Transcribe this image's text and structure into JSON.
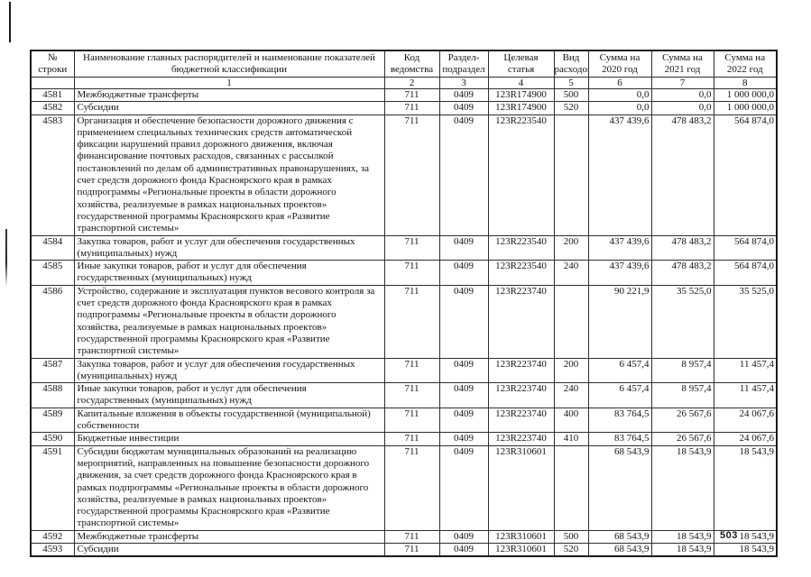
{
  "page": {
    "number": "503"
  },
  "table": {
    "headers": {
      "line": "№ строки",
      "name": "Наименование главных распорядителей и наименование показателей бюджетной классификации",
      "agency": "Код ведомства",
      "section": "Раздел-подраздел",
      "target": "Целевая статья",
      "expense": "Вид расходов",
      "sum2020": "Сумма на 2020 год",
      "sum2021": "Сумма на 2021 год",
      "sum2022": "Сумма на 2022 год"
    },
    "column_numbers": [
      "",
      "1",
      "2",
      "3",
      "4",
      "5",
      "6",
      "7",
      "8"
    ],
    "rows": [
      {
        "line": "4581",
        "name": "Межбюджетные трансферты",
        "agency": "711",
        "section": "0409",
        "target": "123R174900",
        "expense": "500",
        "sum2020": "0,0",
        "sum2021": "0,0",
        "sum2022": "1 000 000,0"
      },
      {
        "line": "4582",
        "name": "Субсидии",
        "agency": "711",
        "section": "0409",
        "target": "123R174900",
        "expense": "520",
        "sum2020": "0,0",
        "sum2021": "0,0",
        "sum2022": "1 000 000,0"
      },
      {
        "line": "4583",
        "name": "Организация и обеспечение безопасности дорожного движения с применением специальных технических средств автоматической фиксации нарушений правил дорожного движения, включая финансирование почтовых расходов, связанных с рассылкой постановлений по делам об административных правонарушениях, за счет средств дорожного фонда Красноярского края в рамках подпрограммы «Региональные проекты в области дорожного хозяйства, реализуемые в рамках национальных проектов» государственной программы Красноярского края «Развитие транспортной системы»",
        "agency": "711",
        "section": "0409",
        "target": "123R223540",
        "expense": "",
        "sum2020": "437 439,6",
        "sum2021": "478 483,2",
        "sum2022": "564 874,0"
      },
      {
        "line": "4584",
        "name": "Закупка товаров, работ и услуг для обеспечения государственных (муниципальных) нужд",
        "agency": "711",
        "section": "0409",
        "target": "123R223540",
        "expense": "200",
        "sum2020": "437 439,6",
        "sum2021": "478 483,2",
        "sum2022": "564 874,0"
      },
      {
        "line": "4585",
        "name": "Иные закупки товаров, работ и услуг для обеспечения государственных (муниципальных) нужд",
        "agency": "711",
        "section": "0409",
        "target": "123R223540",
        "expense": "240",
        "sum2020": "437 439,6",
        "sum2021": "478 483,2",
        "sum2022": "564 874,0"
      },
      {
        "line": "4586",
        "name": "Устройство, содержание и эксплуатация пунктов весового контроля за счет средств дорожного фонда Красноярского края в рамках подпрограммы «Региональные проекты в области дорожного хозяйства, реализуемые в рамках национальных проектов» государственной программы Красноярского края «Развитие транспортной системы»",
        "agency": "711",
        "section": "0409",
        "target": "123R223740",
        "expense": "",
        "sum2020": "90 221,9",
        "sum2021": "35 525,0",
        "sum2022": "35 525,0"
      },
      {
        "line": "4587",
        "name": "Закупка товаров, работ и услуг для обеспечения государственных (муниципальных) нужд",
        "agency": "711",
        "section": "0409",
        "target": "123R223740",
        "expense": "200",
        "sum2020": "6 457,4",
        "sum2021": "8 957,4",
        "sum2022": "11 457,4"
      },
      {
        "line": "4588",
        "name": "Иные закупки товаров, работ и услуг для обеспечения государственных (муниципальных) нужд",
        "agency": "711",
        "section": "0409",
        "target": "123R223740",
        "expense": "240",
        "sum2020": "6 457,4",
        "sum2021": "8 957,4",
        "sum2022": "11 457,4"
      },
      {
        "line": "4589",
        "name": "Капитальные вложения в объекты государственной (муниципальной) собственности",
        "agency": "711",
        "section": "0409",
        "target": "123R223740",
        "expense": "400",
        "sum2020": "83 764,5",
        "sum2021": "26 567,6",
        "sum2022": "24 067,6"
      },
      {
        "line": "4590",
        "name": "Бюджетные инвестиции",
        "agency": "711",
        "section": "0409",
        "target": "123R223740",
        "expense": "410",
        "sum2020": "83 764,5",
        "sum2021": "26 567,6",
        "sum2022": "24 067,6"
      },
      {
        "line": "4591",
        "name": "Субсидии бюджетам муниципальных образований на реализацию мероприятий, направленных на повышение безопасности дорожного движения, за счет средств дорожного фонда Красноярского края в рамках подпрограммы «Региональные проекты в области дорожного хозяйства, реализуемые в рамках национальных проектов» государственной программы Красноярского края «Развитие транспортной системы»",
        "agency": "711",
        "section": "0409",
        "target": "123R310601",
        "expense": "",
        "sum2020": "68 543,9",
        "sum2021": "18 543,9",
        "sum2022": "18 543,9"
      },
      {
        "line": "4592",
        "name": "Межбюджетные трансферты",
        "agency": "711",
        "section": "0409",
        "target": "123R310601",
        "expense": "500",
        "sum2020": "68 543,9",
        "sum2021": "18 543,9",
        "sum2022": "18 543,9"
      },
      {
        "line": "4593",
        "name": "Субсидии",
        "agency": "711",
        "section": "0409",
        "target": "123R310601",
        "expense": "520",
        "sum2020": "68 543,9",
        "sum2021": "18 543,9",
        "sum2022": "18 543,9"
      }
    ]
  }
}
